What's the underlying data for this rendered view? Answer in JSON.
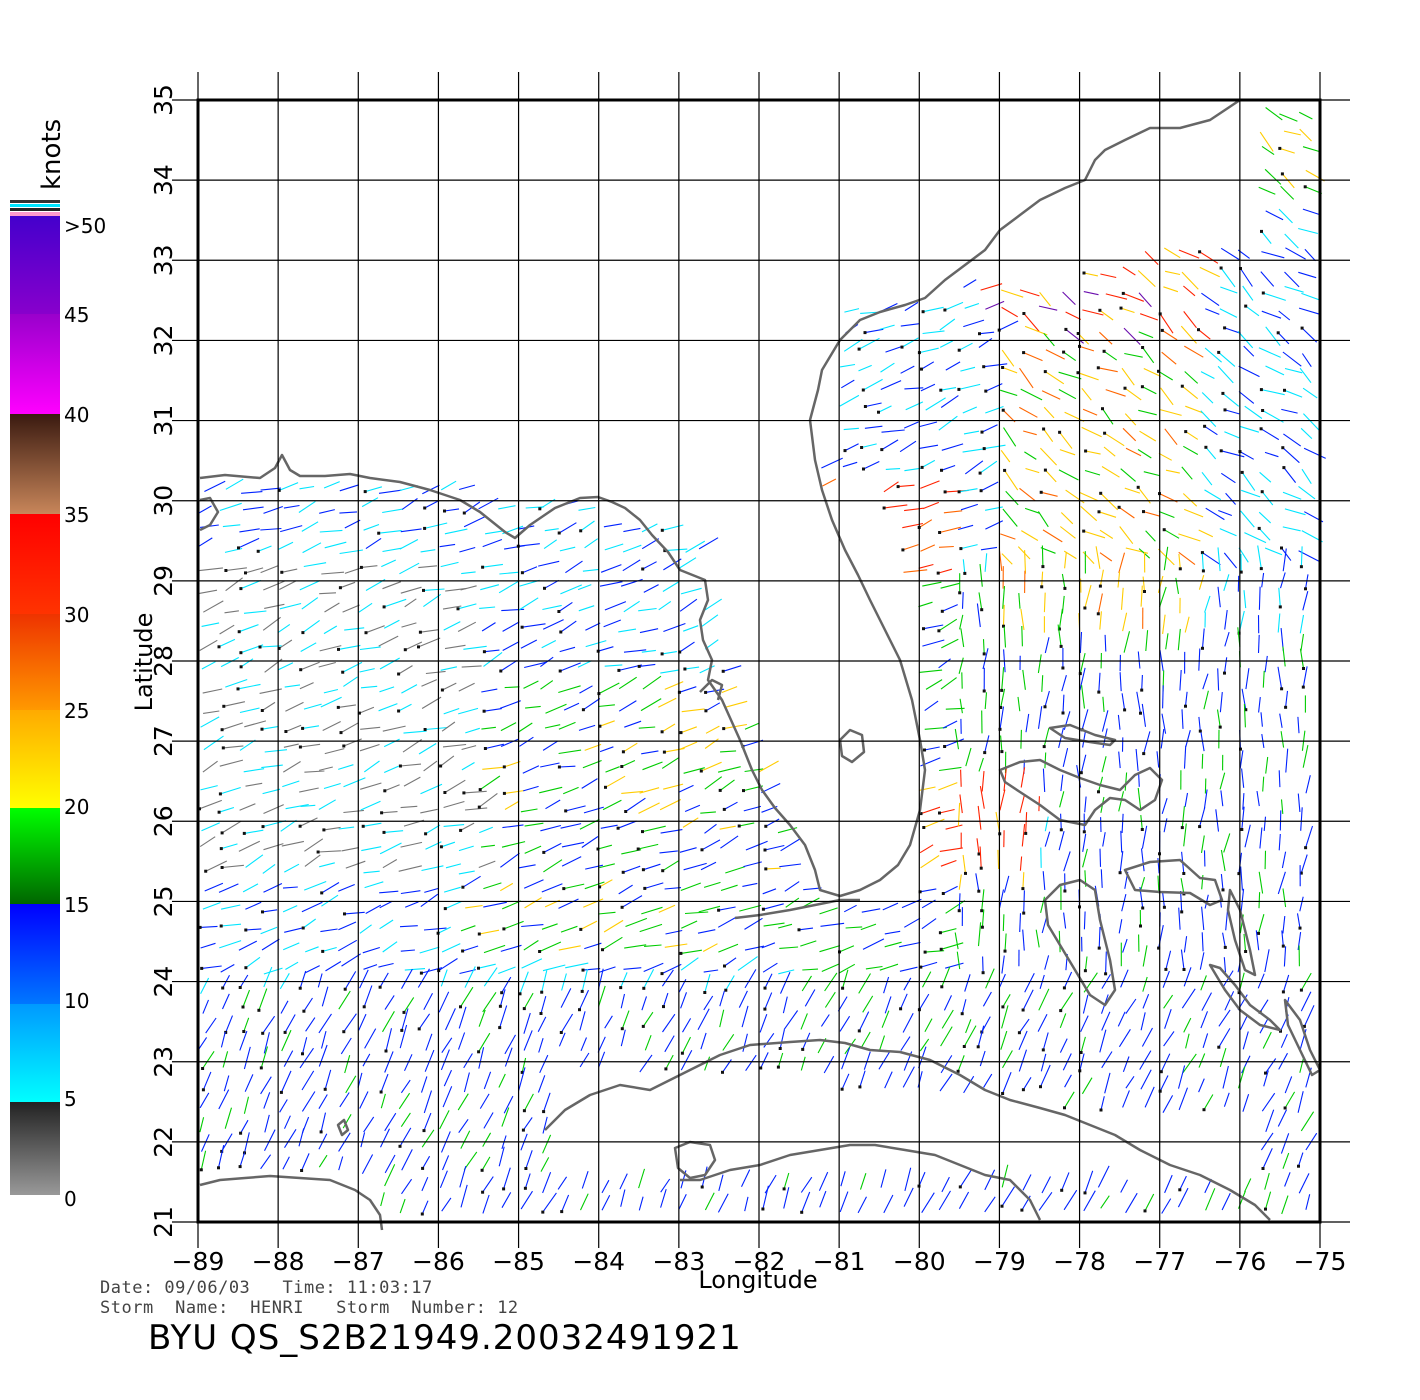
{
  "map": {
    "lon_ticks": [
      "-89",
      "-88",
      "-87",
      "-86",
      "-85",
      "-84",
      "-83",
      "-82",
      "-81",
      "-80",
      "-79",
      "-78",
      "-77",
      "-76",
      "-75"
    ],
    "lat_ticks": [
      "21",
      "22",
      "23",
      "24",
      "25",
      "26",
      "27",
      "28",
      "29",
      "30",
      "31",
      "32",
      "33",
      "34",
      "35"
    ],
    "xlabel": "Longitude",
    "ylabel": "Latitude",
    "lon_range": [
      -89,
      -75
    ],
    "lat_range": [
      21,
      35
    ],
    "grid": true
  },
  "colorbar": {
    "unit": "knots",
    "labels": [
      ">50",
      "45",
      "40",
      "35",
      "30",
      "25",
      "20",
      "15",
      "10",
      "5",
      "0"
    ],
    "colors": {
      "0-5": "#777777",
      "5-10": "#00e5ff",
      "10-15": "#0022ff",
      "15-20": "#00cc00",
      "20-25": "#ffcc00",
      "25-30": "#ff6600",
      "30-35": "#ff2200",
      "35-40": "#8b4513",
      "40-45": "#ff00ff",
      "45-50": "#6a0dad"
    }
  },
  "info": {
    "date_line": "Date: 09/06/03   Time: 11:03:17",
    "storm_line": "Storm  Name:  HENRI   Storm  Number: 12",
    "product_id": "BYU  QS_S2B21949.20032491921"
  }
}
